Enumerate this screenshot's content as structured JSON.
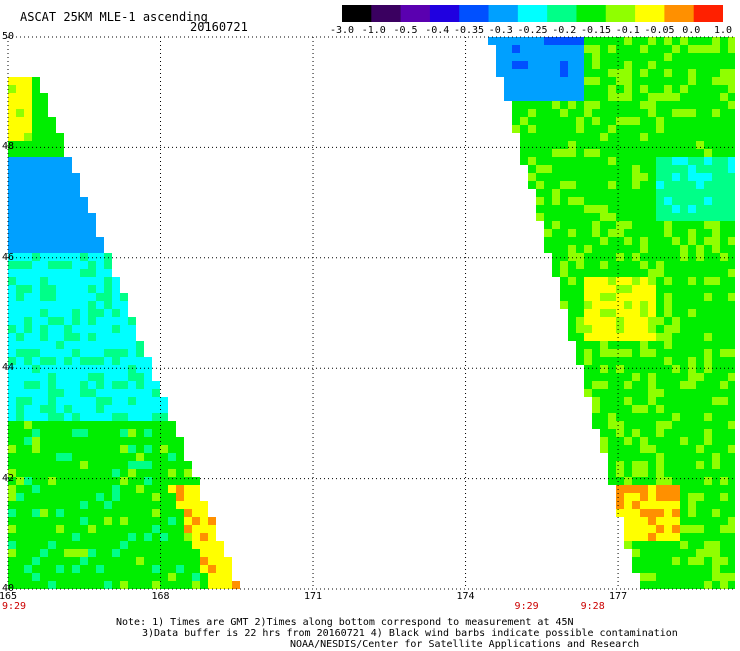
{
  "title": "ASCAT 25KM MLE-1 ascending",
  "date": "20160721",
  "colorbar": {
    "ticks": [
      "-3.0",
      "-1.0",
      "-0.5",
      "-0.4",
      "-0.35",
      "-0.3",
      "-0.25",
      "-0.2",
      "-0.15",
      "-0.1",
      "-0.05",
      "0.0",
      "1.0"
    ],
    "colors": [
      "#000000",
      "#3a0060",
      "#5a00b0",
      "#2000e0",
      "#0050ff",
      "#00a0ff",
      "#00ffff",
      "#00ff88",
      "#00ee00",
      "#90ff00",
      "#ffff00",
      "#ff9000",
      "#ff2000"
    ]
  },
  "axes": {
    "lat_labels": [
      "50",
      "48",
      "46",
      "44",
      "42",
      "40"
    ],
    "lon_labels": [
      "165",
      "168",
      "171",
      "174",
      "177"
    ],
    "lat_range": [
      40,
      50
    ],
    "lon_range": [
      165,
      179.3
    ]
  },
  "times": [
    {
      "label": "9:29",
      "lon": 165
    },
    {
      "label": "9:29",
      "lon": 175.2
    },
    {
      "label": "9:28",
      "lon": 176.5
    }
  ],
  "notes": [
    "Note: 1) Times are GMT 2)Times along bottom correspond to measurement at 45N",
    "3)Data buffer is 22 hrs from 20160721 4) Black wind barbs indicate possible contamination",
    "NOAA/NESDIS/Center for Satellite Applications and Research"
  ]
}
